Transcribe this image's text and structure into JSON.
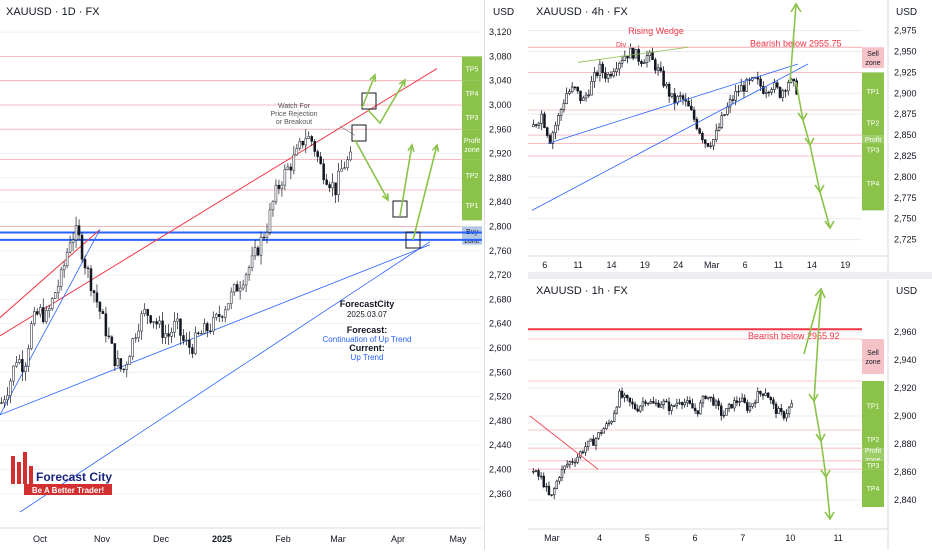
{
  "panels": {
    "daily": {
      "title": "XAUUSD · 1D · FX",
      "currency": "USD",
      "annotation_watch": [
        "Watch For",
        "Price Rejection",
        "or Breakout"
      ],
      "author": "ForecastCity",
      "date": "2025.03.07",
      "forecast_label": "Forecast:",
      "forecast_value": "Continuation of Up Trend",
      "current_label": "Current:",
      "current_value": "Up Trend",
      "logo_name": "Forecast City",
      "logo_tagline": "Be A Better Trader!"
    },
    "h4": {
      "title": "XAUUSD · 4h · FX",
      "currency": "USD",
      "pattern_label": "Rising Wedge",
      "div_label": "Div",
      "bearish_label": "Bearish below 2955.75"
    },
    "h1": {
      "title": "XAUUSD · 1h · FX",
      "currency": "USD",
      "bearish_label": "Bearish below 2955.92"
    }
  },
  "colors": {
    "up": "#089981",
    "down": "#f23645",
    "candle": "#131722",
    "blue_line": "#2962ff",
    "red_line": "#f23645",
    "arrow": "#8bc34a",
    "zone_green": "#8bc34a",
    "zone_red": "#f5c2c7",
    "zone_blue": "#b3c7e6"
  },
  "chart_data": [
    {
      "type": "candlestick",
      "title": "XAUUSD · 1D · FX",
      "ylabel": "USD",
      "ylim": [
        2330,
        3130
      ],
      "y_ticks": [
        2360,
        2400,
        2440,
        2480,
        2520,
        2560,
        2600,
        2640,
        2680,
        2720,
        2760,
        2800,
        2840,
        2880,
        2920,
        2960,
        3000,
        3040,
        3080,
        3120
      ],
      "x_ticks": [
        "Oct",
        "Nov",
        "Dec",
        "2025",
        "Feb",
        "Mar",
        "Apr",
        "May"
      ],
      "zones": [
        {
          "label": "TP5",
          "from": 3040,
          "to": 3080
        },
        {
          "label": "TP4",
          "from": 3000,
          "to": 3040
        },
        {
          "label": "TP3",
          "from": 2960,
          "to": 3000
        },
        {
          "label": "Profit zone",
          "from": 2910,
          "to": 2960
        },
        {
          "label": "TP2",
          "from": 2860,
          "to": 2910
        },
        {
          "label": "TP1",
          "from": 2810,
          "to": 2860
        },
        {
          "label": "Buy zone",
          "from": 2770,
          "to": 2800
        }
      ],
      "support_levels": [
        2790,
        2778
      ],
      "price_path": [
        2510,
        2540,
        2585,
        2570,
        2640,
        2660,
        2650,
        2690,
        2720,
        2780,
        2790,
        2740,
        2700,
        2660,
        2620,
        2580,
        2560,
        2600,
        2640,
        2660,
        2650,
        2630,
        2620,
        2640,
        2610,
        2600,
        2620,
        2630,
        2640,
        2660,
        2680,
        2700,
        2720,
        2740,
        2770,
        2800,
        2850,
        2880,
        2900,
        2920,
        2950,
        2940,
        2900,
        2880,
        2860,
        2900,
        2910
      ]
    },
    {
      "type": "candlestick",
      "title": "XAUUSD · 4h · FX",
      "ylabel": "USD",
      "ylim": [
        2715,
        2990
      ],
      "y_ticks": [
        2725,
        2750,
        2775,
        2800,
        2825,
        2850,
        2875,
        2900,
        2925,
        2950,
        2975
      ],
      "x_ticks": [
        "6",
        "11",
        "14",
        "19",
        "24",
        "Mar",
        "6",
        "11",
        "14",
        "19"
      ],
      "zones": [
        {
          "label": "Sell zone",
          "from": 2930,
          "to": 2955
        },
        {
          "label": "TP1",
          "from": 2880,
          "to": 2925
        },
        {
          "label": "TP2",
          "from": 2850,
          "to": 2880
        },
        {
          "label": "Profit zone",
          "from": 2830,
          "to": 2850
        },
        {
          "label": "TP3",
          "from": 2825,
          "to": 2840
        },
        {
          "label": "TP4",
          "from": 2760,
          "to": 2825
        }
      ],
      "bearish_level": 2955.75,
      "price_path": [
        2860,
        2875,
        2845,
        2870,
        2900,
        2905,
        2890,
        2910,
        2930,
        2920,
        2935,
        2945,
        2950,
        2940,
        2945,
        2930,
        2910,
        2890,
        2895,
        2880,
        2860,
        2840,
        2845,
        2870,
        2890,
        2905,
        2910,
        2915,
        2905,
        2910,
        2900,
        2915,
        2905
      ]
    },
    {
      "type": "candlestick",
      "title": "XAUUSD · 1h · FX",
      "ylabel": "USD",
      "ylim": [
        2825,
        2985
      ],
      "y_ticks": [
        2840,
        2860,
        2880,
        2900,
        2920,
        2940,
        2960
      ],
      "x_ticks": [
        "Mar",
        "4",
        "5",
        "6",
        "7",
        "10",
        "11"
      ],
      "zones": [
        {
          "label": "Sell zone",
          "from": 2930,
          "to": 2955
        },
        {
          "label": "TP1",
          "from": 2890,
          "to": 2925
        },
        {
          "label": "TP2",
          "from": 2877,
          "to": 2890
        },
        {
          "label": "Profit zone",
          "from": 2868,
          "to": 2877
        },
        {
          "label": "TP3",
          "from": 2862,
          "to": 2868
        },
        {
          "label": "TP4",
          "from": 2835,
          "to": 2862
        }
      ],
      "bearish_level": 2955.92,
      "price_path": [
        2860,
        2855,
        2840,
        2858,
        2866,
        2870,
        2878,
        2882,
        2890,
        2896,
        2915,
        2910,
        2905,
        2912,
        2908,
        2910,
        2905,
        2912,
        2908,
        2903,
        2915,
        2910,
        2900,
        2908,
        2912,
        2905,
        2915,
        2918,
        2905,
        2900,
        2908
      ]
    }
  ]
}
